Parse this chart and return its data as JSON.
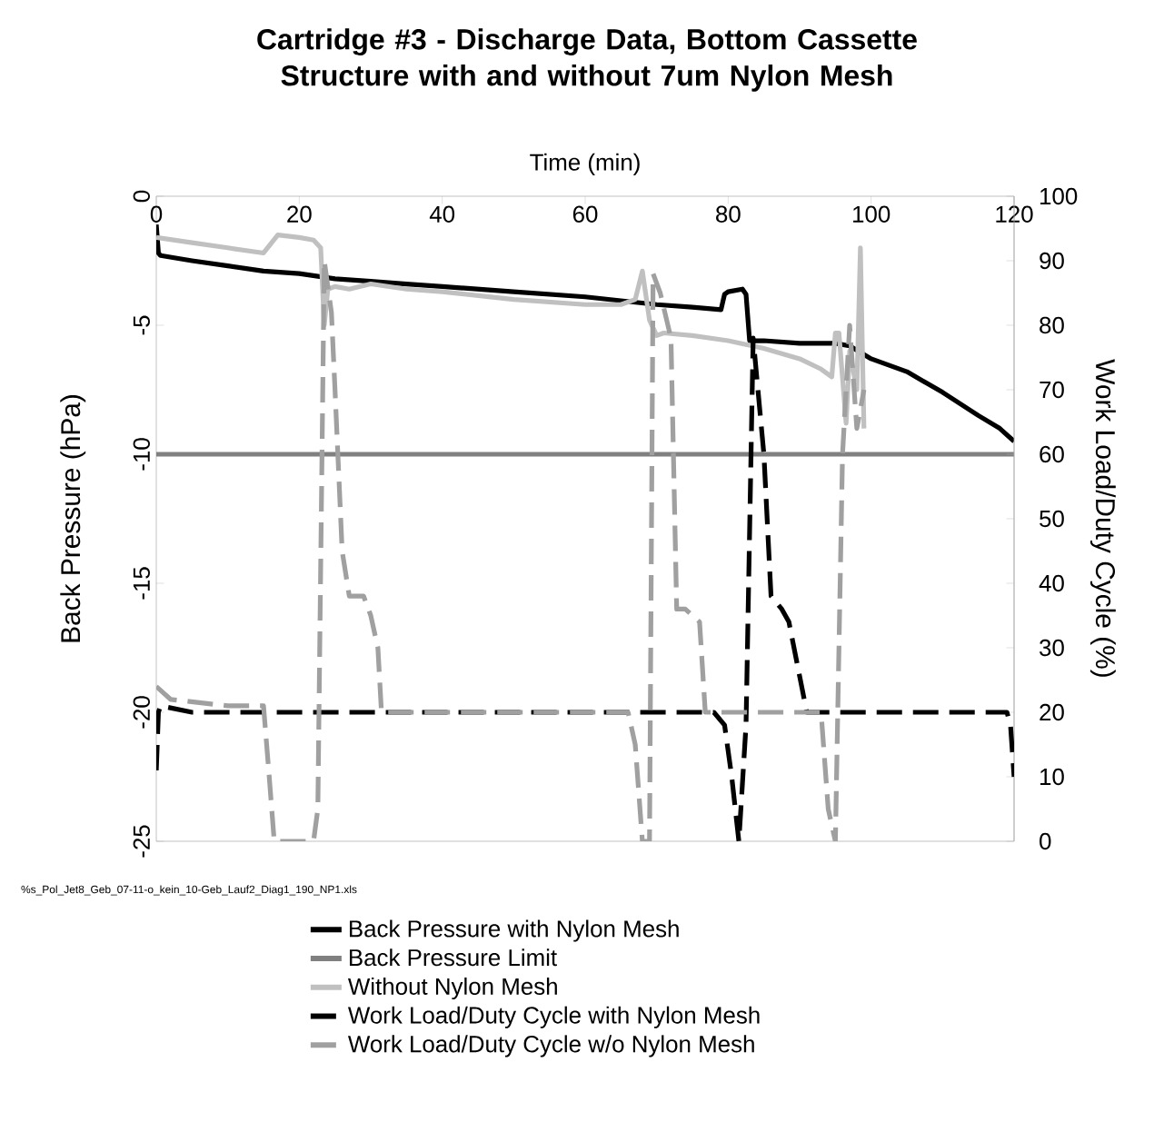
{
  "chart_data": {
    "type": "line",
    "title": "Cartridge #3 - Discharge Data, Bottom Cassette Structure with and without 7um Nylon Mesh",
    "xlabel": "Time (min)",
    "ylabel": "Back Pressure (hPa)",
    "y2label": "Work Load/Duty Cycle (%)",
    "xlim": [
      0,
      120
    ],
    "xticks": [
      0,
      20,
      40,
      60,
      80,
      100,
      120
    ],
    "ylim": [
      -25,
      0
    ],
    "yticks": [
      -25,
      -20,
      -15,
      -10,
      -5,
      0
    ],
    "y2lim": [
      0,
      100
    ],
    "y2ticks": [
      0,
      10,
      20,
      30,
      40,
      50,
      60,
      70,
      80,
      90,
      100
    ],
    "legend": "bottom",
    "marker": "none",
    "annotations": [
      "%s_Pol_Jet8_Geb_07-11-o_kein_10-Geb_Lauf2_Diag1_190_NP1.xls"
    ],
    "series": [
      {
        "name": "Back Pressure with Nylon Mesh",
        "color": "#000000",
        "line_style": "solid",
        "x": [
          0,
          0.3,
          0.6,
          5,
          10,
          15,
          20,
          25,
          30,
          35,
          40,
          50,
          60,
          70,
          75,
          79,
          79.5,
          80,
          82,
          82.5,
          83,
          85,
          90,
          95,
          97,
          100,
          105,
          110,
          115,
          118,
          120
        ],
        "values": [
          -1.1,
          -2.2,
          -2.3,
          -2.5,
          -2.7,
          -2.9,
          -3.0,
          -3.2,
          -3.3,
          -3.4,
          -3.5,
          -3.7,
          -3.9,
          -4.2,
          -4.3,
          -4.4,
          -3.8,
          -3.7,
          -3.6,
          -3.8,
          -5.6,
          -5.6,
          -5.7,
          -5.7,
          -5.8,
          -6.3,
          -6.8,
          -7.6,
          -8.5,
          -9.0,
          -9.5
        ]
      },
      {
        "name": "Back Pressure Limit",
        "color": "#808080",
        "line_style": "solid",
        "x": [
          0,
          120
        ],
        "values": [
          -10,
          -10
        ]
      },
      {
        "name": "Without Nylon Mesh",
        "color": "#c0c0c0",
        "line_style": "solid",
        "x": [
          0,
          5,
          10,
          15,
          17,
          20,
          22,
          23,
          23.5,
          24,
          25,
          27,
          30,
          35,
          40,
          50,
          60,
          65,
          67,
          68,
          69,
          70,
          71,
          75,
          80,
          85,
          90,
          93,
          94.5,
          95,
          95.5,
          96.5,
          97,
          98,
          98.5,
          99
        ],
        "values": [
          -1.6,
          -1.8,
          -2.0,
          -2.2,
          -1.5,
          -1.6,
          -1.7,
          -2.0,
          -5.0,
          -3.6,
          -3.5,
          -3.6,
          -3.4,
          -3.6,
          -3.7,
          -4.0,
          -4.2,
          -4.2,
          -4.0,
          -2.9,
          -4.8,
          -5.4,
          -5.3,
          -5.4,
          -5.6,
          -5.9,
          -6.3,
          -6.7,
          -7.0,
          -5.3,
          -5.3,
          -8.8,
          -6.0,
          -7.5,
          -2.0,
          -9.0
        ]
      },
      {
        "name": "Work Load/Duty Cycle with Nylon Mesh",
        "color": "#000000",
        "line_style": "dashed",
        "axis": "y2",
        "x": [
          0,
          0.3,
          0.6,
          5,
          20,
          40,
          60,
          78,
          79.5,
          80.5,
          81.5,
          82.5,
          83.5,
          85,
          86,
          87.5,
          88.5,
          91,
          100,
          110,
          119,
          119.5,
          120
        ],
        "values": [
          11,
          20,
          21,
          20,
          20,
          20,
          20,
          20,
          18,
          10,
          0,
          18,
          78,
          60,
          38,
          36,
          34,
          20,
          20,
          20,
          20,
          18,
          10
        ]
      },
      {
        "name": "Work Load/Duty Cycle w/o Nylon Mesh",
        "color": "#a0a0a0",
        "line_style": "dashed",
        "axis": "y2",
        "x": [
          0,
          2,
          10,
          15,
          15.8,
          16.5,
          22,
          22.6,
          23.5,
          24.5,
          25,
          26,
          27,
          29,
          30,
          31,
          31.5,
          40,
          50,
          60,
          66,
          67,
          68,
          69,
          69.5,
          70.5,
          72,
          72.8,
          74,
          76,
          76.8,
          80,
          90,
          93,
          94,
          95,
          96,
          97,
          98,
          99
        ],
        "values": [
          24,
          22,
          21,
          21,
          10,
          0,
          0,
          5,
          90,
          82,
          70,
          45,
          38,
          38,
          35,
          30,
          20,
          20,
          20,
          20,
          20,
          15,
          0,
          0,
          88,
          85,
          78,
          36,
          36,
          34,
          20,
          20,
          20,
          20,
          5,
          0,
          60,
          80,
          64,
          70
        ]
      }
    ]
  }
}
